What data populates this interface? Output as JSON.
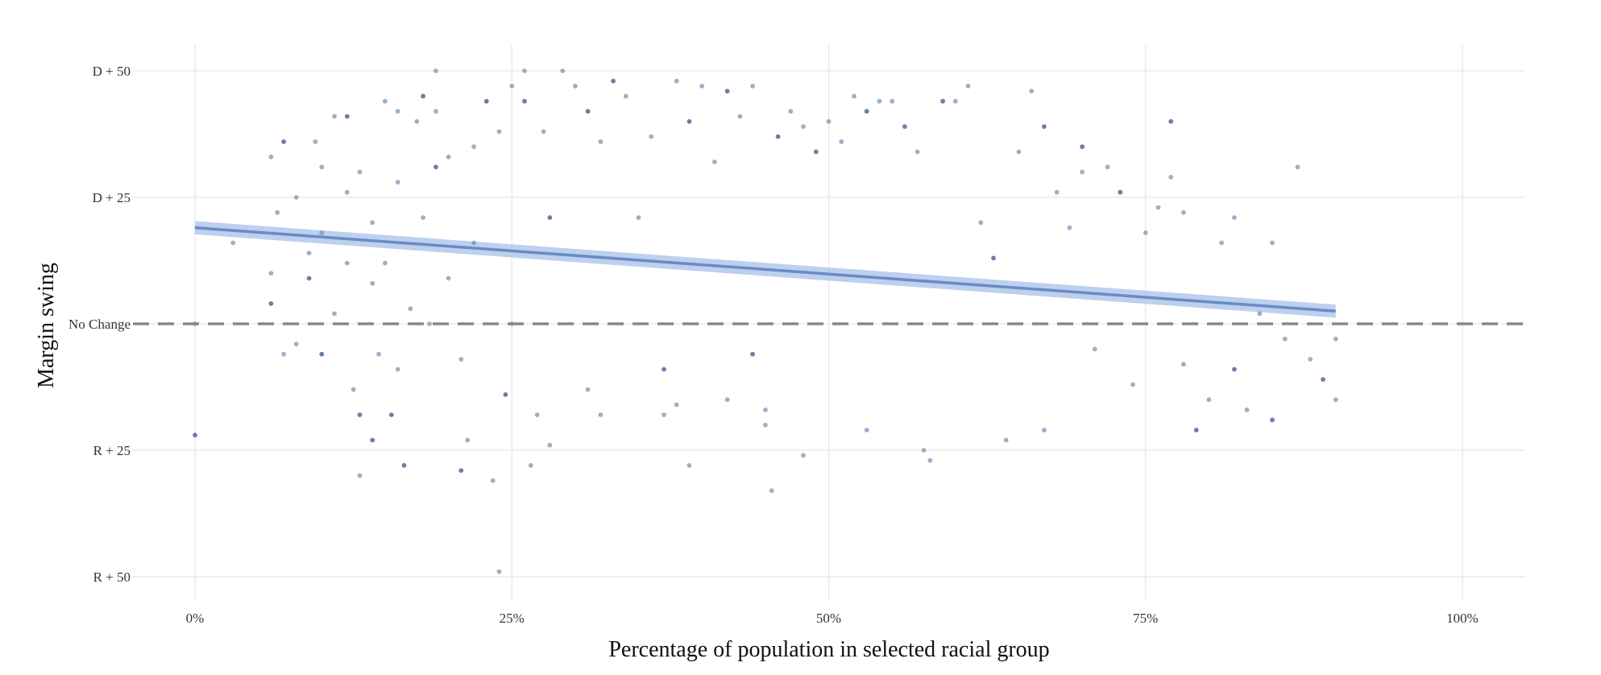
{
  "chart_data": {
    "type": "scatter",
    "title": "",
    "xlabel": "Percentage of population in selected racial group",
    "ylabel": "Margin swing",
    "xlim": [
      -0.05,
      1.05
    ],
    "ylim": [
      -52,
      52
    ],
    "grid": true,
    "legend": "none",
    "x_ticks": [
      {
        "value": 0,
        "label": "0%"
      },
      {
        "value": 0.25,
        "label": "25%"
      },
      {
        "value": 0.5,
        "label": "50%"
      },
      {
        "value": 0.75,
        "label": "75%"
      },
      {
        "value": 1,
        "label": "100%"
      }
    ],
    "y_ticks": [
      {
        "value": 50,
        "label": "D + 50"
      },
      {
        "value": 25,
        "label": "D + 25"
      },
      {
        "value": 0,
        "label": "No Change"
      },
      {
        "value": -25,
        "label": "R + 25"
      },
      {
        "value": -50,
        "label": "R + 50"
      }
    ],
    "reference_line": {
      "y": 0,
      "style": "dashed",
      "color": "#888888"
    },
    "colors": {
      "points": "#6f8fb6",
      "points_dark": "#3f628f",
      "trend": "#6a8bc4",
      "confidence_band": "#a7c0e8",
      "grid": "#e5e5e5"
    },
    "trend_line": {
      "x": [
        0,
        0.9
      ],
      "y": [
        19,
        2.5
      ],
      "ci_halfwidth": 1.3
    },
    "series": [
      {
        "points": [
          [
            0.0,
            -22
          ],
          [
            0.0,
            0
          ],
          [
            0.03,
            16
          ],
          [
            0.06,
            33
          ],
          [
            0.06,
            4
          ],
          [
            0.06,
            10
          ],
          [
            0.065,
            22
          ],
          [
            0.07,
            -6
          ],
          [
            0.07,
            36
          ],
          [
            0.08,
            25
          ],
          [
            0.08,
            -4
          ],
          [
            0.09,
            14
          ],
          [
            0.09,
            9
          ],
          [
            0.095,
            36
          ],
          [
            0.1,
            31
          ],
          [
            0.1,
            18
          ],
          [
            0.1,
            -6
          ],
          [
            0.11,
            41
          ],
          [
            0.11,
            2
          ],
          [
            0.12,
            26
          ],
          [
            0.12,
            41
          ],
          [
            0.12,
            12
          ],
          [
            0.125,
            -13
          ],
          [
            0.13,
            30
          ],
          [
            0.13,
            -18
          ],
          [
            0.13,
            -30
          ],
          [
            0.14,
            20
          ],
          [
            0.14,
            8
          ],
          [
            0.14,
            -23
          ],
          [
            0.145,
            -6
          ],
          [
            0.15,
            44
          ],
          [
            0.15,
            12
          ],
          [
            0.155,
            -18
          ],
          [
            0.16,
            42
          ],
          [
            0.16,
            28
          ],
          [
            0.16,
            -9
          ],
          [
            0.165,
            -28
          ],
          [
            0.17,
            3
          ],
          [
            0.175,
            40
          ],
          [
            0.18,
            21
          ],
          [
            0.18,
            45
          ],
          [
            0.185,
            0
          ],
          [
            0.19,
            50
          ],
          [
            0.19,
            42
          ],
          [
            0.19,
            31
          ],
          [
            0.2,
            33
          ],
          [
            0.2,
            9
          ],
          [
            0.21,
            -7
          ],
          [
            0.21,
            -29
          ],
          [
            0.215,
            -23
          ],
          [
            0.22,
            35
          ],
          [
            0.22,
            16
          ],
          [
            0.23,
            44
          ],
          [
            0.235,
            -31
          ],
          [
            0.24,
            -49
          ],
          [
            0.24,
            38
          ],
          [
            0.245,
            -14
          ],
          [
            0.25,
            47
          ],
          [
            0.25,
            0
          ],
          [
            0.26,
            50
          ],
          [
            0.26,
            44
          ],
          [
            0.265,
            -28
          ],
          [
            0.27,
            -18
          ],
          [
            0.275,
            38
          ],
          [
            0.28,
            21
          ],
          [
            0.28,
            -24
          ],
          [
            0.29,
            50
          ],
          [
            0.3,
            47
          ],
          [
            0.31,
            42
          ],
          [
            0.31,
            -13
          ],
          [
            0.32,
            36
          ],
          [
            0.32,
            -18
          ],
          [
            0.33,
            48
          ],
          [
            0.34,
            45
          ],
          [
            0.35,
            21
          ],
          [
            0.36,
            37
          ],
          [
            0.37,
            -9
          ],
          [
            0.37,
            -18
          ],
          [
            0.38,
            48
          ],
          [
            0.38,
            -16
          ],
          [
            0.39,
            40
          ],
          [
            0.39,
            -28
          ],
          [
            0.4,
            47
          ],
          [
            0.41,
            32
          ],
          [
            0.42,
            46
          ],
          [
            0.42,
            -15
          ],
          [
            0.43,
            41
          ],
          [
            0.44,
            47
          ],
          [
            0.44,
            -6
          ],
          [
            0.45,
            -17
          ],
          [
            0.45,
            -20
          ],
          [
            0.455,
            -33
          ],
          [
            0.46,
            37
          ],
          [
            0.47,
            42
          ],
          [
            0.48,
            -26
          ],
          [
            0.48,
            39
          ],
          [
            0.49,
            34
          ],
          [
            0.5,
            40
          ],
          [
            0.51,
            36
          ],
          [
            0.52,
            45
          ],
          [
            0.53,
            42
          ],
          [
            0.53,
            -21
          ],
          [
            0.54,
            44
          ],
          [
            0.55,
            44
          ],
          [
            0.56,
            39
          ],
          [
            0.57,
            34
          ],
          [
            0.575,
            -25
          ],
          [
            0.58,
            -27
          ],
          [
            0.59,
            44
          ],
          [
            0.6,
            44
          ],
          [
            0.61,
            47
          ],
          [
            0.62,
            20
          ],
          [
            0.63,
            13
          ],
          [
            0.64,
            -23
          ],
          [
            0.65,
            34
          ],
          [
            0.66,
            46
          ],
          [
            0.67,
            39
          ],
          [
            0.67,
            -21
          ],
          [
            0.68,
            26
          ],
          [
            0.69,
            19
          ],
          [
            0.7,
            35
          ],
          [
            0.7,
            30
          ],
          [
            0.71,
            -5
          ],
          [
            0.72,
            31
          ],
          [
            0.73,
            26
          ],
          [
            0.74,
            -12
          ],
          [
            0.75,
            18
          ],
          [
            0.76,
            23
          ],
          [
            0.77,
            40
          ],
          [
            0.77,
            29
          ],
          [
            0.78,
            -8
          ],
          [
            0.78,
            22
          ],
          [
            0.79,
            -21
          ],
          [
            0.8,
            -15
          ],
          [
            0.81,
            16
          ],
          [
            0.82,
            21
          ],
          [
            0.82,
            -9
          ],
          [
            0.83,
            -17
          ],
          [
            0.84,
            2
          ],
          [
            0.85,
            16
          ],
          [
            0.85,
            -19
          ],
          [
            0.86,
            -3
          ],
          [
            0.87,
            31
          ],
          [
            0.88,
            -7
          ],
          [
            0.89,
            -11
          ],
          [
            0.9,
            -15
          ],
          [
            0.9,
            -3
          ]
        ]
      }
    ]
  }
}
